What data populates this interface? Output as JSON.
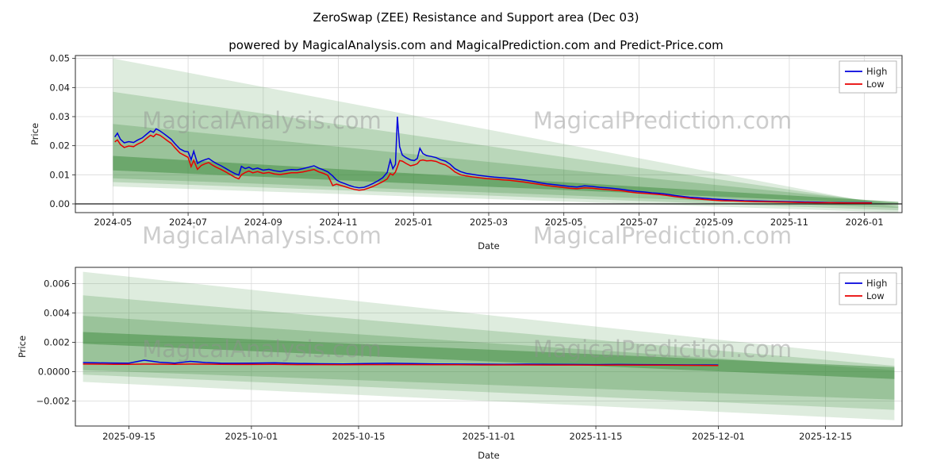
{
  "figure": {
    "title": "ZeroSwap (ZEE) Resistance and Support area (Dec 03)",
    "subtitle": "powered by MagicalAnalysis.com and MagicalPrediction.com and Predict-Price.com"
  },
  "watermark": {
    "left": "MagicalAnalysis.com",
    "right": "MagicalPrediction.com"
  },
  "colors": {
    "high": "#0000dd",
    "low": "#e80000",
    "band": "#3d8c3d",
    "grid": "#d9d9d9",
    "axis": "#1a1a1a"
  },
  "chart_data": [
    {
      "name": "price-overview",
      "type": "line",
      "xlabel": "Date",
      "ylabel": "Price",
      "grid": true,
      "legend_position": "upper right",
      "x_unit": "months since 2024-01-01",
      "xlim": [
        3.0,
        25.0
      ],
      "ylim": [
        -0.003,
        0.051
      ],
      "zero_line": true,
      "x_ticks": [
        {
          "v": 4,
          "label": "2024-05"
        },
        {
          "v": 6,
          "label": "2024-07"
        },
        {
          "v": 8,
          "label": "2024-09"
        },
        {
          "v": 10,
          "label": "2024-11"
        },
        {
          "v": 12,
          "label": "2025-01"
        },
        {
          "v": 14,
          "label": "2025-03"
        },
        {
          "v": 16,
          "label": "2025-05"
        },
        {
          "v": 18,
          "label": "2025-07"
        },
        {
          "v": 20,
          "label": "2025-09"
        },
        {
          "v": 22,
          "label": "2025-11"
        },
        {
          "v": 24,
          "label": "2026-01"
        }
      ],
      "y_ticks": [
        {
          "v": 0.0,
          "label": "0.00"
        },
        {
          "v": 0.01,
          "label": "0.01"
        },
        {
          "v": 0.02,
          "label": "0.02"
        },
        {
          "v": 0.03,
          "label": "0.03"
        },
        {
          "v": 0.04,
          "label": "0.04"
        },
        {
          "v": 0.05,
          "label": "0.05"
        }
      ],
      "series": [
        {
          "name": "High",
          "color": "#0000dd"
        },
        {
          "name": "Low",
          "color": "#e80000"
        }
      ],
      "points": [
        [
          4.05,
          0.023,
          0.0213
        ],
        [
          4.12,
          0.0243,
          0.022
        ],
        [
          4.2,
          0.0222,
          0.0204
        ],
        [
          4.3,
          0.021,
          0.0194
        ],
        [
          4.42,
          0.0214,
          0.0199
        ],
        [
          4.55,
          0.0211,
          0.0197
        ],
        [
          4.65,
          0.0219,
          0.0205
        ],
        [
          4.78,
          0.0227,
          0.0213
        ],
        [
          4.9,
          0.024,
          0.0226
        ],
        [
          5.0,
          0.0251,
          0.0236
        ],
        [
          5.08,
          0.0246,
          0.0231
        ],
        [
          5.15,
          0.0258,
          0.024
        ],
        [
          5.25,
          0.0251,
          0.0236
        ],
        [
          5.35,
          0.0242,
          0.0227
        ],
        [
          5.45,
          0.0232,
          0.0217
        ],
        [
          5.55,
          0.0222,
          0.0208
        ],
        [
          5.65,
          0.0207,
          0.0193
        ],
        [
          5.78,
          0.0189,
          0.0175
        ],
        [
          5.9,
          0.0181,
          0.0167
        ],
        [
          6.0,
          0.0179,
          0.016
        ],
        [
          6.08,
          0.0152,
          0.0128
        ],
        [
          6.15,
          0.0181,
          0.015
        ],
        [
          6.25,
          0.0139,
          0.0119
        ],
        [
          6.35,
          0.0147,
          0.0132
        ],
        [
          6.45,
          0.0152,
          0.0138
        ],
        [
          6.55,
          0.0156,
          0.0142
        ],
        [
          6.65,
          0.0147,
          0.0133
        ],
        [
          6.75,
          0.0139,
          0.0126
        ],
        [
          6.88,
          0.0131,
          0.0118
        ],
        [
          7.0,
          0.0122,
          0.011
        ],
        [
          7.12,
          0.0113,
          0.0101
        ],
        [
          7.25,
          0.0104,
          0.0091
        ],
        [
          7.35,
          0.0099,
          0.0086
        ],
        [
          7.42,
          0.0129,
          0.01
        ],
        [
          7.52,
          0.0121,
          0.0108
        ],
        [
          7.62,
          0.0126,
          0.0113
        ],
        [
          7.72,
          0.0119,
          0.0107
        ],
        [
          7.85,
          0.0123,
          0.0111
        ],
        [
          8.0,
          0.0116,
          0.0105
        ],
        [
          8.15,
          0.0119,
          0.0108
        ],
        [
          8.3,
          0.0114,
          0.0103
        ],
        [
          8.45,
          0.0111,
          0.0101
        ],
        [
          8.6,
          0.0115,
          0.0104
        ],
        [
          8.75,
          0.0118,
          0.0107
        ],
        [
          8.9,
          0.0117,
          0.0107
        ],
        [
          9.05,
          0.0121,
          0.011
        ],
        [
          9.2,
          0.0126,
          0.0114
        ],
        [
          9.35,
          0.0131,
          0.0118
        ],
        [
          9.48,
          0.0123,
          0.011
        ],
        [
          9.6,
          0.0117,
          0.0105
        ],
        [
          9.72,
          0.011,
          0.0098
        ],
        [
          9.85,
          0.0096,
          0.0063
        ],
        [
          9.95,
          0.0082,
          0.0068
        ],
        [
          10.05,
          0.0075,
          0.0064
        ],
        [
          10.18,
          0.0069,
          0.0059
        ],
        [
          10.3,
          0.0063,
          0.0054
        ],
        [
          10.42,
          0.0058,
          0.005
        ],
        [
          10.55,
          0.0055,
          0.0047
        ],
        [
          10.68,
          0.0057,
          0.0049
        ],
        [
          10.8,
          0.0063,
          0.0054
        ],
        [
          10.92,
          0.007,
          0.006
        ],
        [
          11.05,
          0.0079,
          0.0068
        ],
        [
          11.18,
          0.009,
          0.0076
        ],
        [
          11.3,
          0.0108,
          0.0086
        ],
        [
          11.38,
          0.0151,
          0.0104
        ],
        [
          11.45,
          0.0121,
          0.0099
        ],
        [
          11.52,
          0.0136,
          0.011
        ],
        [
          11.57,
          0.03,
          0.0127
        ],
        [
          11.63,
          0.0197,
          0.0149
        ],
        [
          11.7,
          0.0168,
          0.0147
        ],
        [
          11.8,
          0.0159,
          0.0139
        ],
        [
          11.92,
          0.0151,
          0.0131
        ],
        [
          12.02,
          0.0149,
          0.0134
        ],
        [
          12.1,
          0.0156,
          0.0138
        ],
        [
          12.17,
          0.0191,
          0.0149
        ],
        [
          12.25,
          0.0173,
          0.0151
        ],
        [
          12.35,
          0.0166,
          0.0148
        ],
        [
          12.47,
          0.0163,
          0.0149
        ],
        [
          12.6,
          0.0159,
          0.0146
        ],
        [
          12.72,
          0.0152,
          0.0139
        ],
        [
          12.85,
          0.0147,
          0.0134
        ],
        [
          12.97,
          0.0137,
          0.0124
        ],
        [
          13.1,
          0.0121,
          0.011
        ],
        [
          13.25,
          0.0111,
          0.01
        ],
        [
          13.4,
          0.0105,
          0.0096
        ],
        [
          13.55,
          0.0102,
          0.0093
        ],
        [
          13.75,
          0.0098,
          0.009
        ],
        [
          13.95,
          0.0095,
          0.0087
        ],
        [
          14.15,
          0.0092,
          0.0085
        ],
        [
          14.35,
          0.009,
          0.0083
        ],
        [
          14.55,
          0.0088,
          0.0081
        ],
        [
          14.75,
          0.0085,
          0.0078
        ],
        [
          14.95,
          0.0082,
          0.0075
        ],
        [
          15.15,
          0.0078,
          0.0071
        ],
        [
          15.35,
          0.0073,
          0.0067
        ],
        [
          15.55,
          0.0069,
          0.0063
        ],
        [
          15.75,
          0.0066,
          0.006
        ],
        [
          15.95,
          0.0063,
          0.0057
        ],
        [
          16.15,
          0.006,
          0.0054
        ],
        [
          16.35,
          0.0058,
          0.0052
        ],
        [
          16.55,
          0.0062,
          0.0055
        ],
        [
          16.75,
          0.006,
          0.0054
        ],
        [
          16.95,
          0.0057,
          0.0051
        ],
        [
          17.15,
          0.0055,
          0.0049
        ],
        [
          17.35,
          0.0053,
          0.0047
        ],
        [
          17.55,
          0.005,
          0.0045
        ],
        [
          17.75,
          0.0046,
          0.0041
        ],
        [
          17.95,
          0.0043,
          0.0038
        ],
        [
          18.15,
          0.0041,
          0.0036
        ],
        [
          18.35,
          0.0038,
          0.0034
        ],
        [
          18.55,
          0.0036,
          0.0032
        ],
        [
          18.75,
          0.0033,
          0.0029
        ],
        [
          18.95,
          0.0029,
          0.0025
        ],
        [
          19.15,
          0.0026,
          0.0022
        ],
        [
          19.35,
          0.0023,
          0.0019
        ],
        [
          19.55,
          0.0021,
          0.0017
        ],
        [
          19.75,
          0.0019,
          0.0015
        ],
        [
          19.95,
          0.0017,
          0.0013
        ],
        [
          20.2,
          0.0015,
          0.0011
        ],
        [
          20.5,
          0.0013,
          0.001
        ],
        [
          20.8,
          0.0011,
          0.0009
        ],
        [
          21.1,
          0.001,
          0.0008
        ],
        [
          21.5,
          0.0009,
          0.0007
        ],
        [
          21.9,
          0.0008,
          0.0006
        ],
        [
          22.3,
          0.0007,
          0.0005
        ],
        [
          22.7,
          0.0006,
          0.0004
        ],
        [
          23.1,
          0.0005,
          0.0004
        ],
        [
          23.6,
          0.0004,
          0.0003
        ],
        [
          24.2,
          0.0004,
          0.0003
        ]
      ],
      "bands": [
        {
          "x0": 4.0,
          "x1": 24.9,
          "top0": 0.05,
          "top1": -0.0012,
          "bot0": 0.006,
          "bot1": -0.003,
          "alpha": 0.17
        },
        {
          "x0": 4.0,
          "x1": 24.9,
          "top0": 0.0385,
          "top1": -0.0005,
          "bot0": 0.0075,
          "bot1": -0.0022,
          "alpha": 0.22
        },
        {
          "x0": 4.0,
          "x1": 24.9,
          "top0": 0.0275,
          "top1": 0.0002,
          "bot0": 0.0088,
          "bot1": -0.0014,
          "alpha": 0.26
        },
        {
          "x0": 4.0,
          "x1": 24.9,
          "top0": 0.0165,
          "top1": 0.0007,
          "bot0": 0.0115,
          "bot1": -0.0002,
          "alpha": 0.5
        }
      ]
    },
    {
      "name": "price-recent-zoom",
      "type": "line",
      "xlabel": "Date",
      "ylabel": "Price",
      "grid": true,
      "legend_position": "upper right",
      "x_unit": "days since 2025-09-08",
      "xlim": [
        0,
        108
      ],
      "ylim": [
        -0.0037,
        0.0071
      ],
      "zero_line": false,
      "x_ticks": [
        {
          "v": 7,
          "label": "2025-09-15"
        },
        {
          "v": 23,
          "label": "2025-10-01"
        },
        {
          "v": 37,
          "label": "2025-10-15"
        },
        {
          "v": 54,
          "label": "2025-11-01"
        },
        {
          "v": 68,
          "label": "2025-11-15"
        },
        {
          "v": 84,
          "label": "2025-12-01"
        },
        {
          "v": 98,
          "label": "2025-12-15"
        }
      ],
      "y_ticks": [
        {
          "v": -0.002,
          "label": "−0.002"
        },
        {
          "v": 0.0,
          "label": "0.0000"
        },
        {
          "v": 0.002,
          "label": "0.002"
        },
        {
          "v": 0.004,
          "label": "0.004"
        },
        {
          "v": 0.006,
          "label": "0.006"
        }
      ],
      "series": [
        {
          "name": "High",
          "color": "#0000dd"
        },
        {
          "name": "Low",
          "color": "#e80000"
        }
      ],
      "points": [
        [
          1,
          0.00062,
          0.00052
        ],
        [
          3,
          0.0006,
          0.00051
        ],
        [
          5,
          0.00059,
          0.0005
        ],
        [
          7,
          0.00058,
          0.0005
        ],
        [
          9,
          0.00078,
          0.00052
        ],
        [
          11,
          0.00064,
          0.00051
        ],
        [
          13,
          0.00058,
          0.0005
        ],
        [
          15,
          0.0007,
          0.00052
        ],
        [
          17,
          0.00062,
          0.00051
        ],
        [
          19,
          0.00058,
          0.0005
        ],
        [
          21,
          0.00057,
          0.00049
        ],
        [
          23,
          0.00058,
          0.00049
        ],
        [
          26,
          0.0006,
          0.0005
        ],
        [
          29,
          0.00056,
          0.00048
        ],
        [
          32,
          0.00054,
          0.00048
        ],
        [
          35,
          0.00053,
          0.00047
        ],
        [
          38,
          0.00055,
          0.00048
        ],
        [
          41,
          0.00057,
          0.00048
        ],
        [
          44,
          0.00055,
          0.00048
        ],
        [
          47,
          0.00053,
          0.00047
        ],
        [
          50,
          0.00052,
          0.00047
        ],
        [
          53,
          0.00051,
          0.00046
        ],
        [
          56,
          0.0005,
          0.00046
        ],
        [
          59,
          0.00051,
          0.00046
        ],
        [
          62,
          0.0005,
          0.00045
        ],
        [
          65,
          0.00049,
          0.00045
        ],
        [
          68,
          0.00048,
          0.00044
        ],
        [
          71,
          0.00049,
          0.00045
        ],
        [
          74,
          0.00048,
          0.00044
        ],
        [
          77,
          0.00047,
          0.00044
        ],
        [
          80,
          0.00046,
          0.00043
        ],
        [
          84,
          0.00045,
          0.00042
        ]
      ],
      "bands": [
        {
          "x0": 1,
          "x1": 107,
          "top0": 0.0068,
          "top1": 0.0009,
          "bot0": -0.0007,
          "bot1": -0.0033,
          "alpha": 0.17
        },
        {
          "x0": 1,
          "x1": 107,
          "top0": 0.0052,
          "top1": 0.0004,
          "bot0": -0.0002,
          "bot1": -0.0026,
          "alpha": 0.22
        },
        {
          "x0": 1,
          "x1": 107,
          "top0": 0.0038,
          "top1": 0.0001,
          "bot0": 0.0001,
          "bot1": -0.0019,
          "alpha": 0.26
        },
        {
          "x0": 1,
          "x1": 107,
          "top0": 0.0027,
          "top1": 0.0003,
          "bot0": 0.0019,
          "bot1": -0.0005,
          "alpha": 0.5
        }
      ]
    }
  ]
}
